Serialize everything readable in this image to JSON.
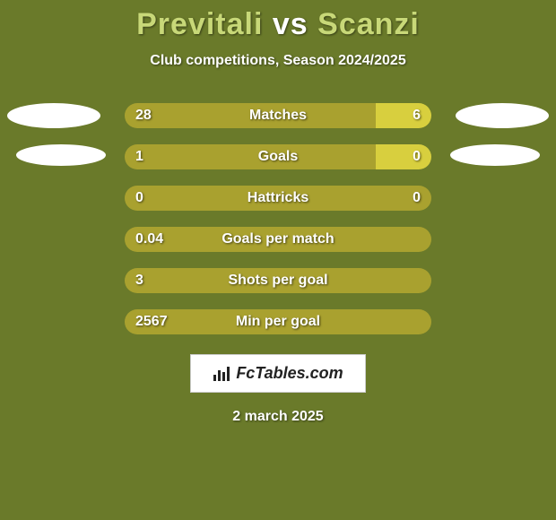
{
  "background_color": "#6a7a2a",
  "title": {
    "player1": "Previtali",
    "vs": "vs",
    "player2": "Scanzi",
    "player1_color": "#c8d878",
    "player2_color": "#c8d878",
    "vs_color": "#ffffff"
  },
  "subtitle": "Club competitions, Season 2024/2025",
  "bar_colors": {
    "left": "#a9a12f",
    "right": "#d8cf3e"
  },
  "stats": [
    {
      "label": "Matches",
      "left_val": "28",
      "right_val": "6",
      "left_pct": 82,
      "show_ellipses": true
    },
    {
      "label": "Goals",
      "left_val": "1",
      "right_val": "0",
      "left_pct": 82,
      "show_ellipses": true
    },
    {
      "label": "Hattricks",
      "left_val": "0",
      "right_val": "0",
      "left_pct": 100,
      "show_ellipses": false
    },
    {
      "label": "Goals per match",
      "left_val": "0.04",
      "right_val": "",
      "left_pct": 100,
      "show_ellipses": false
    },
    {
      "label": "Shots per goal",
      "left_val": "3",
      "right_val": "",
      "left_pct": 100,
      "show_ellipses": false
    },
    {
      "label": "Min per goal",
      "left_val": "2567",
      "right_val": "",
      "left_pct": 100,
      "show_ellipses": false
    }
  ],
  "brand": "FcTables.com",
  "date": "2 march 2025",
  "ellipse_color": "#ffffff"
}
